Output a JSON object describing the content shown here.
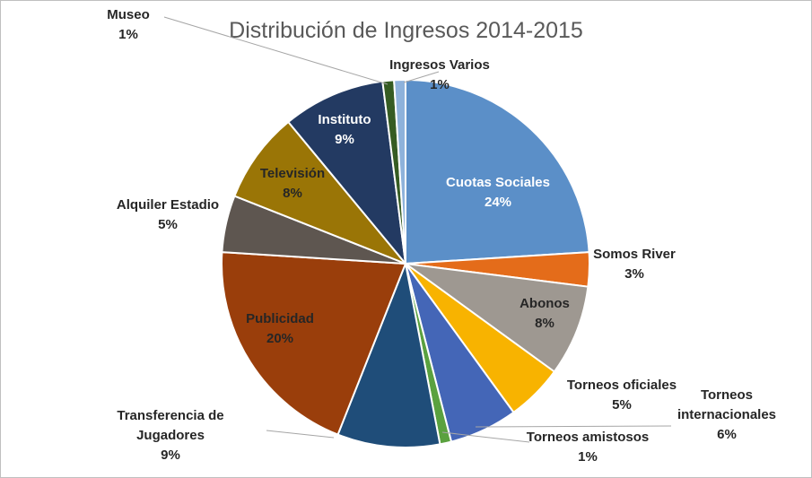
{
  "chart_data": {
    "type": "pie",
    "title": "Distribución de Ingresos 2014-2015",
    "slices": [
      {
        "label_lines": [
          "Cuotas Sociales"
        ],
        "pct_text": "24%",
        "value": 24,
        "color": "#5b8fc8",
        "text_color": "#ffffff"
      },
      {
        "label_lines": [
          "Somos River"
        ],
        "pct_text": "3%",
        "value": 3,
        "color": "#e46c1a",
        "text_color": "#262626"
      },
      {
        "label_lines": [
          "Abonos"
        ],
        "pct_text": "8%",
        "value": 8,
        "color": "#9e9891",
        "text_color": "#262626"
      },
      {
        "label_lines": [
          "Torneos oficiales"
        ],
        "pct_text": "5%",
        "value": 5,
        "color": "#f8b300",
        "text_color": "#262626"
      },
      {
        "label_lines": [
          "Torneos",
          "internacionales"
        ],
        "pct_text": "6%",
        "value": 6,
        "color": "#4466b7",
        "text_color": "#262626"
      },
      {
        "label_lines": [
          "Torneos amistosos"
        ],
        "pct_text": "1%",
        "value": 1,
        "color": "#5aa13f",
        "text_color": "#262626"
      },
      {
        "label_lines": [
          "Transferencia de",
          "Jugadores"
        ],
        "pct_text": "9%",
        "value": 9,
        "color": "#1f4d79",
        "text_color": "#262626"
      },
      {
        "label_lines": [
          "Publicidad"
        ],
        "pct_text": "20%",
        "value": 20,
        "color": "#9a3e0b",
        "text_color": "#262626"
      },
      {
        "label_lines": [
          "Alquiler Estadio"
        ],
        "pct_text": "5%",
        "value": 5,
        "color": "#5e5650",
        "text_color": "#262626"
      },
      {
        "label_lines": [
          "Televisión"
        ],
        "pct_text": "8%",
        "value": 8,
        "color": "#9a7506",
        "text_color": "#262626"
      },
      {
        "label_lines": [
          "Instituto"
        ],
        "pct_text": "9%",
        "value": 9,
        "color": "#233a62",
        "text_color": "#ffffff"
      },
      {
        "label_lines": [
          "Museo"
        ],
        "pct_text": "1%",
        "value": 1,
        "color": "#365c23",
        "text_color": "#262626"
      },
      {
        "label_lines": [
          "Ingresos Varios"
        ],
        "pct_text": "1%",
        "value": 1,
        "color": "#8eb2db",
        "text_color": "#262626"
      }
    ]
  }
}
